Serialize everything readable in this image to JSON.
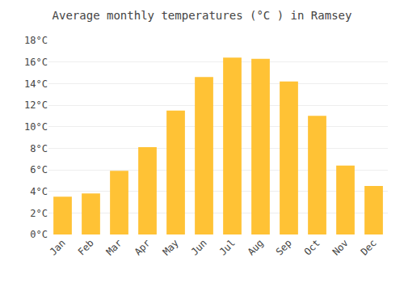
{
  "chart_data": {
    "type": "bar",
    "title": "Average monthly temperatures (°C ) in Ramsey",
    "categories": [
      "Jan",
      "Feb",
      "Mar",
      "Apr",
      "May",
      "Jun",
      "Jul",
      "Aug",
      "Sep",
      "Oct",
      "Nov",
      "Dec"
    ],
    "values": [
      3.5,
      3.8,
      5.9,
      8.1,
      11.5,
      14.6,
      16.4,
      16.3,
      14.2,
      11.0,
      6.4,
      4.5
    ],
    "color": "#FFC235",
    "ylim": [
      0,
      18
    ],
    "yticks": [
      {
        "value": 0,
        "label": "0°C"
      },
      {
        "value": 2,
        "label": "2°C"
      },
      {
        "value": 4,
        "label": "4°C"
      },
      {
        "value": 6,
        "label": "6°C"
      },
      {
        "value": 8,
        "label": "8°C"
      },
      {
        "value": 10,
        "label": "10°C"
      },
      {
        "value": 12,
        "label": "12°C"
      },
      {
        "value": 14,
        "label": "14°C"
      },
      {
        "value": 16,
        "label": "16°C"
      },
      {
        "value": 18,
        "label": "18°C"
      }
    ],
    "grid": true
  }
}
